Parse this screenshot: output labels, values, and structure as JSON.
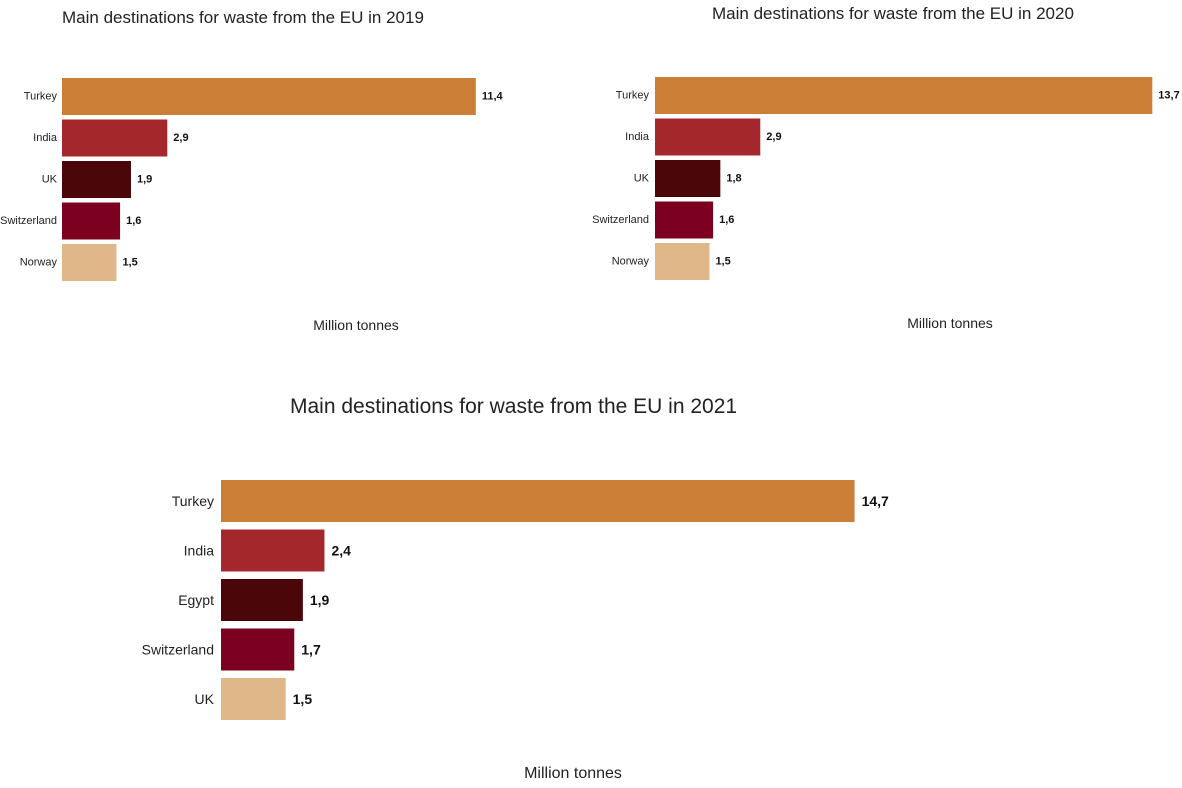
{
  "chart_data": [
    {
      "type": "bar",
      "orientation": "horizontal",
      "title": "Main destinations for waste from the EU in 2019",
      "xlabel": "Million tonnes",
      "categories": [
        "Turkey",
        "India",
        "UK",
        "Switzerland",
        "Norway"
      ],
      "values": [
        11.4,
        2.9,
        1.9,
        1.6,
        1.5
      ],
      "value_labels": [
        "11,4",
        "2,9",
        "1,9",
        "1,6",
        "1,5"
      ],
      "colors": [
        "#CB7F36",
        "#A4272C",
        "#4A0609",
        "#7C0020",
        "#DFB788"
      ]
    },
    {
      "type": "bar",
      "orientation": "horizontal",
      "title": "Main destinations for waste from the EU in 2020",
      "xlabel": "Million tonnes",
      "categories": [
        "Turkey",
        "India",
        "UK",
        "Switzerland",
        "Norway"
      ],
      "values": [
        13.7,
        2.9,
        1.8,
        1.6,
        1.5
      ],
      "value_labels": [
        "13,7",
        "2,9",
        "1,8",
        "1,6",
        "1,5"
      ],
      "colors": [
        "#CB7F36",
        "#A4272C",
        "#4A0609",
        "#7C0020",
        "#DFB788"
      ]
    },
    {
      "type": "bar",
      "orientation": "horizontal",
      "title": "Main destinations for waste from the EU in 2021",
      "xlabel": "Million tonnes",
      "categories": [
        "Turkey",
        "India",
        "Egypt",
        "Switzerland",
        "UK"
      ],
      "values": [
        14.7,
        2.4,
        1.9,
        1.7,
        1.5
      ],
      "value_labels": [
        "14,7",
        "2,4",
        "1,9",
        "1,7",
        "1,5"
      ],
      "colors": [
        "#CB7F36",
        "#A4272C",
        "#4A0609",
        "#7C0020",
        "#DFB788"
      ]
    }
  ]
}
